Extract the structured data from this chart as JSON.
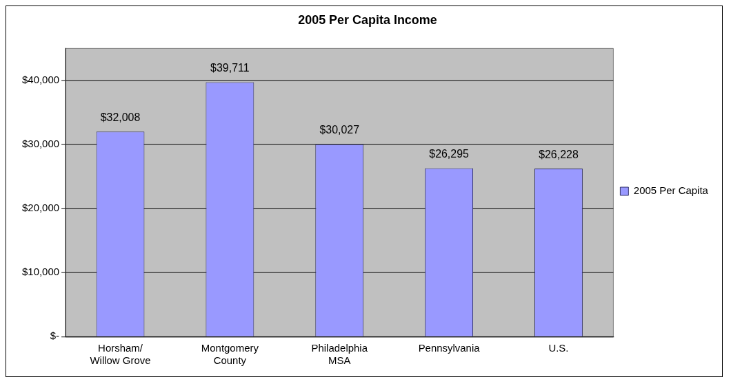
{
  "chart_data": {
    "type": "bar",
    "title": "2005 Per Capita Income",
    "categories": [
      "Horsham/Willow Grove",
      "Montgomery County",
      "Philadelphia MSA",
      "Pennsylvania",
      "U.S."
    ],
    "series": [
      {
        "name": "2005 Per Capita",
        "color": "#9999ff",
        "values": [
          32008,
          39711,
          30027,
          26295,
          26228
        ],
        "value_labels": [
          "$32,008",
          "$39,711",
          "$30,027",
          "$26,295",
          "$26,228"
        ]
      }
    ],
    "ylim": [
      0,
      45000
    ],
    "yticks": [
      {
        "value": 0,
        "label": "$-"
      },
      {
        "value": 10000,
        "label": "$10,000"
      },
      {
        "value": 20000,
        "label": "$20,000"
      },
      {
        "value": 30000,
        "label": "$30,000"
      },
      {
        "value": 40000,
        "label": "$40,000"
      }
    ],
    "grid": "y",
    "legend": "right"
  }
}
